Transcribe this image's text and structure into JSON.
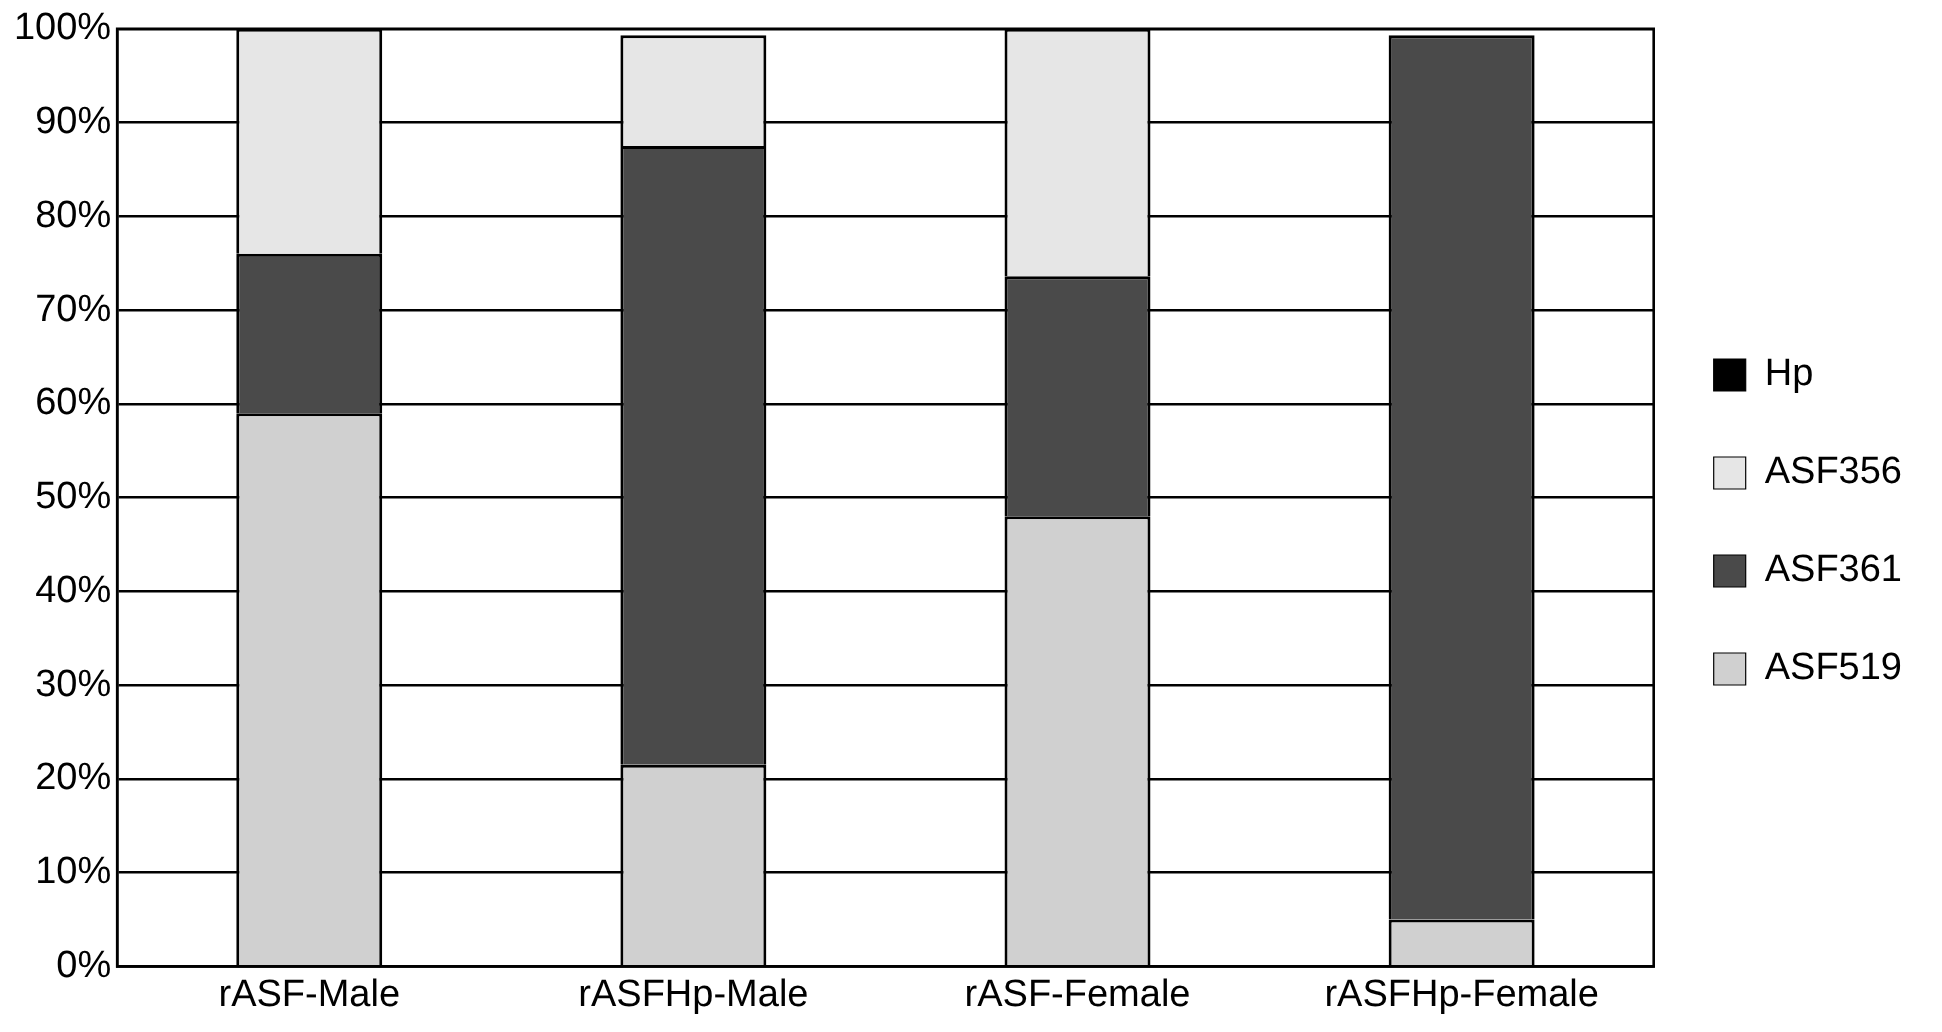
{
  "chart_data": {
    "type": "bar",
    "stacked": true,
    "categories": [
      "rASF-Male",
      "rASFHp-Male",
      "rASF-Female",
      "rASFHp-Female"
    ],
    "series": [
      {
        "name": "ASF519",
        "color": "#d0d0d0",
        "values": [
          59,
          21.5,
          48,
          5
        ]
      },
      {
        "name": "ASF361",
        "color": "#4a4a4a",
        "values": [
          17,
          66,
          25.6,
          94.3
        ]
      },
      {
        "name": "ASF356",
        "color": "#e6e6e6",
        "values": [
          24,
          11.8,
          26.4,
          null
        ]
      },
      {
        "name": "Hp",
        "color": "#000000",
        "values": [
          0,
          null,
          0,
          null
        ]
      }
    ],
    "ylim": [
      0,
      100
    ],
    "yticks": [
      {
        "value": 0,
        "label": "0%"
      },
      {
        "value": 10,
        "label": "10%"
      },
      {
        "value": 20,
        "label": "20%"
      },
      {
        "value": 30,
        "label": "30%"
      },
      {
        "value": 40,
        "label": "40%"
      },
      {
        "value": 50,
        "label": "50%"
      },
      {
        "value": 60,
        "label": "60%"
      },
      {
        "value": 70,
        "label": "70%"
      },
      {
        "value": 80,
        "label": "80%"
      },
      {
        "value": 90,
        "label": "90%"
      },
      {
        "value": 100,
        "label": "100%"
      }
    ],
    "grid": "y",
    "legend": "right"
  }
}
